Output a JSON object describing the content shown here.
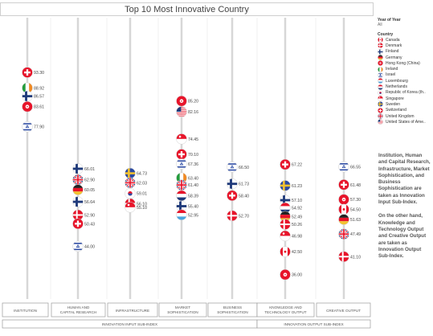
{
  "title": "Top 10 Most Innovative Country",
  "legend": {
    "filter_title": "Year of Year",
    "filter_value": "All",
    "country_title": "Country",
    "countries": [
      {
        "name": "Canada",
        "flag": "canada"
      },
      {
        "name": "Denmark",
        "flag": "denmark"
      },
      {
        "name": "Finland",
        "flag": "finland"
      },
      {
        "name": "Germany",
        "flag": "germany"
      },
      {
        "name": "Hong Kong (China)",
        "flag": "hongkong"
      },
      {
        "name": "Ireland",
        "flag": "ireland"
      },
      {
        "name": "Israel",
        "flag": "israel"
      },
      {
        "name": "Luxembourg",
        "flag": "luxembourg"
      },
      {
        "name": "Netherlands",
        "flag": "netherlands"
      },
      {
        "name": "Republic of Korea (th..",
        "flag": "korea"
      },
      {
        "name": "Singapore",
        "flag": "singapore"
      },
      {
        "name": "Sweden",
        "flag": "sweden"
      },
      {
        "name": "Switzerland",
        "flag": "switzerland"
      },
      {
        "name": "United Kingdom",
        "flag": "uk"
      },
      {
        "name": "United States of Ame..",
        "flag": "usa"
      }
    ]
  },
  "notes": [
    "Institution, Human and Capital Research, Infrastructure, Market Sophistication, and Business Sophistication are taken as Innovation Input Sub-Index.",
    "On the other hand, Knowledge and Technology Output and Creative Output are taken as Innovation Output Sub-Index."
  ],
  "flag_colors": {
    "red": "#e8142a",
    "blue": "#2b4aa3",
    "navy": "#1f3a7a",
    "yellow": "#f2c230",
    "green": "#239c3c",
    "orange": "#f08a24",
    "lightblue": "#4aa4df",
    "black": "#222222",
    "white": "#ffffff"
  },
  "chart_data": {
    "type": "scatter",
    "title": "Top 10 Most Innovative Country",
    "categories": [
      "INSTITUTION",
      "HUMAN AND CAPITAL RESEARCH",
      "INFRASTRUCTURE",
      "MARKET SOPHISTICATION",
      "BUSINESS SOPHISTICATION",
      "KNOWLEDGE AND TECHNOLOGY OUTPUT",
      "CREATIVE OUTPUT"
    ],
    "groups": [
      {
        "label": "INNOVATION INPUT SUB-INDEX",
        "span": [
          0,
          4
        ]
      },
      {
        "label": "INNOVATION OUTPUT SUB-INDEX",
        "span": [
          5,
          6
        ]
      }
    ],
    "ylim": [
      30,
      100
    ],
    "points": [
      {
        "category": 0,
        "value": 93.3,
        "flag": "switzerland",
        "label": "93.30"
      },
      {
        "category": 0,
        "value": 88.92,
        "flag": "ireland",
        "label": "88.92"
      },
      {
        "category": 0,
        "value": 86.57,
        "flag": "finland",
        "label": "86.57"
      },
      {
        "category": 0,
        "value": 83.61,
        "flag": "hongkong",
        "label": "83.61"
      },
      {
        "category": 0,
        "value": 77.9,
        "flag": "israel",
        "label": "77.90"
      },
      {
        "category": 1,
        "value": 66.01,
        "flag": "finland",
        "label": "66.01"
      },
      {
        "category": 1,
        "value": 62.9,
        "flag": "uk",
        "label": "62.90"
      },
      {
        "category": 1,
        "value": 60.05,
        "flag": "germany",
        "label": "60.05"
      },
      {
        "category": 1,
        "value": 56.64,
        "flag": "finland",
        "label": "56.64"
      },
      {
        "category": 1,
        "value": 52.9,
        "flag": "denmark",
        "label": "52.90"
      },
      {
        "category": 1,
        "value": 50.43,
        "flag": "switzerland",
        "label": "50.43"
      },
      {
        "category": 1,
        "value": 44.0,
        "flag": "israel",
        "label": "44.00"
      },
      {
        "category": 2,
        "value": 64.73,
        "flag": "sweden",
        "label": "64.73"
      },
      {
        "category": 2,
        "value": 62.03,
        "flag": "uk",
        "label": "62.03"
      },
      {
        "category": 2,
        "value": 59.01,
        "flag": "korea",
        "label": "59.01"
      },
      {
        "category": 2,
        "value": 56.1,
        "flag": "denmark",
        "label": "56.10"
      },
      {
        "category": 2,
        "value": 55.1,
        "flag": "singapore",
        "label": "55.10"
      },
      {
        "category": 3,
        "value": 85.2,
        "flag": "hongkong",
        "label": "85.20"
      },
      {
        "category": 3,
        "value": 82.16,
        "flag": "usa",
        "label": "82.16"
      },
      {
        "category": 3,
        "value": 74.45,
        "flag": "singapore",
        "label": "74.45"
      },
      {
        "category": 3,
        "value": 70.1,
        "flag": "switzerland",
        "label": "70.10"
      },
      {
        "category": 3,
        "value": 67.36,
        "flag": "israel",
        "label": "67.36"
      },
      {
        "category": 3,
        "value": 63.4,
        "flag": "ireland",
        "label": "63.40"
      },
      {
        "category": 3,
        "value": 61.4,
        "flag": "uk",
        "label": "61.40"
      },
      {
        "category": 3,
        "value": 58.39,
        "flag": "netherlands",
        "label": "58.39"
      },
      {
        "category": 3,
        "value": 55.4,
        "flag": "finland",
        "label": "55.40"
      },
      {
        "category": 3,
        "value": 52.95,
        "flag": "luxembourg",
        "label": "52.95"
      },
      {
        "category": 4,
        "value": 66.5,
        "flag": "israel",
        "label": "66.50"
      },
      {
        "category": 4,
        "value": 61.73,
        "flag": "finland",
        "label": "61.73"
      },
      {
        "category": 4,
        "value": 58.4,
        "flag": "switzerland",
        "label": "58.40"
      },
      {
        "category": 4,
        "value": 52.7,
        "flag": "denmark",
        "label": "52.70"
      },
      {
        "category": 5,
        "value": 67.22,
        "flag": "switzerland",
        "label": "67.22"
      },
      {
        "category": 5,
        "value": 61.23,
        "flag": "sweden",
        "label": "61.23"
      },
      {
        "category": 5,
        "value": 57.1,
        "flag": "finland",
        "label": "57.10"
      },
      {
        "category": 5,
        "value": 54.92,
        "flag": "netherlands",
        "label": "54.92"
      },
      {
        "category": 5,
        "value": 52.49,
        "flag": "germany",
        "label": "52.49"
      },
      {
        "category": 5,
        "value": 50.26,
        "flag": "denmark",
        "label": "50.26"
      },
      {
        "category": 5,
        "value": 46.98,
        "flag": "singapore",
        "label": "46.98"
      },
      {
        "category": 5,
        "value": 42.5,
        "flag": "canada",
        "label": "42.50"
      },
      {
        "category": 5,
        "value": 36.0,
        "flag": "hongkong",
        "label": "36.00"
      },
      {
        "category": 6,
        "value": 66.55,
        "flag": "israel",
        "label": "66.55"
      },
      {
        "category": 6,
        "value": 61.48,
        "flag": "switzerland",
        "label": "61.48"
      },
      {
        "category": 6,
        "value": 57.3,
        "flag": "hongkong",
        "label": "57.30"
      },
      {
        "category": 6,
        "value": 54.5,
        "flag": "canada",
        "label": "54.50"
      },
      {
        "category": 6,
        "value": 51.63,
        "flag": "germany",
        "label": "51.63"
      },
      {
        "category": 6,
        "value": 47.49,
        "flag": "uk",
        "label": "47.49"
      },
      {
        "category": 6,
        "value": 41.1,
        "flag": "denmark",
        "label": "41.10"
      }
    ]
  }
}
